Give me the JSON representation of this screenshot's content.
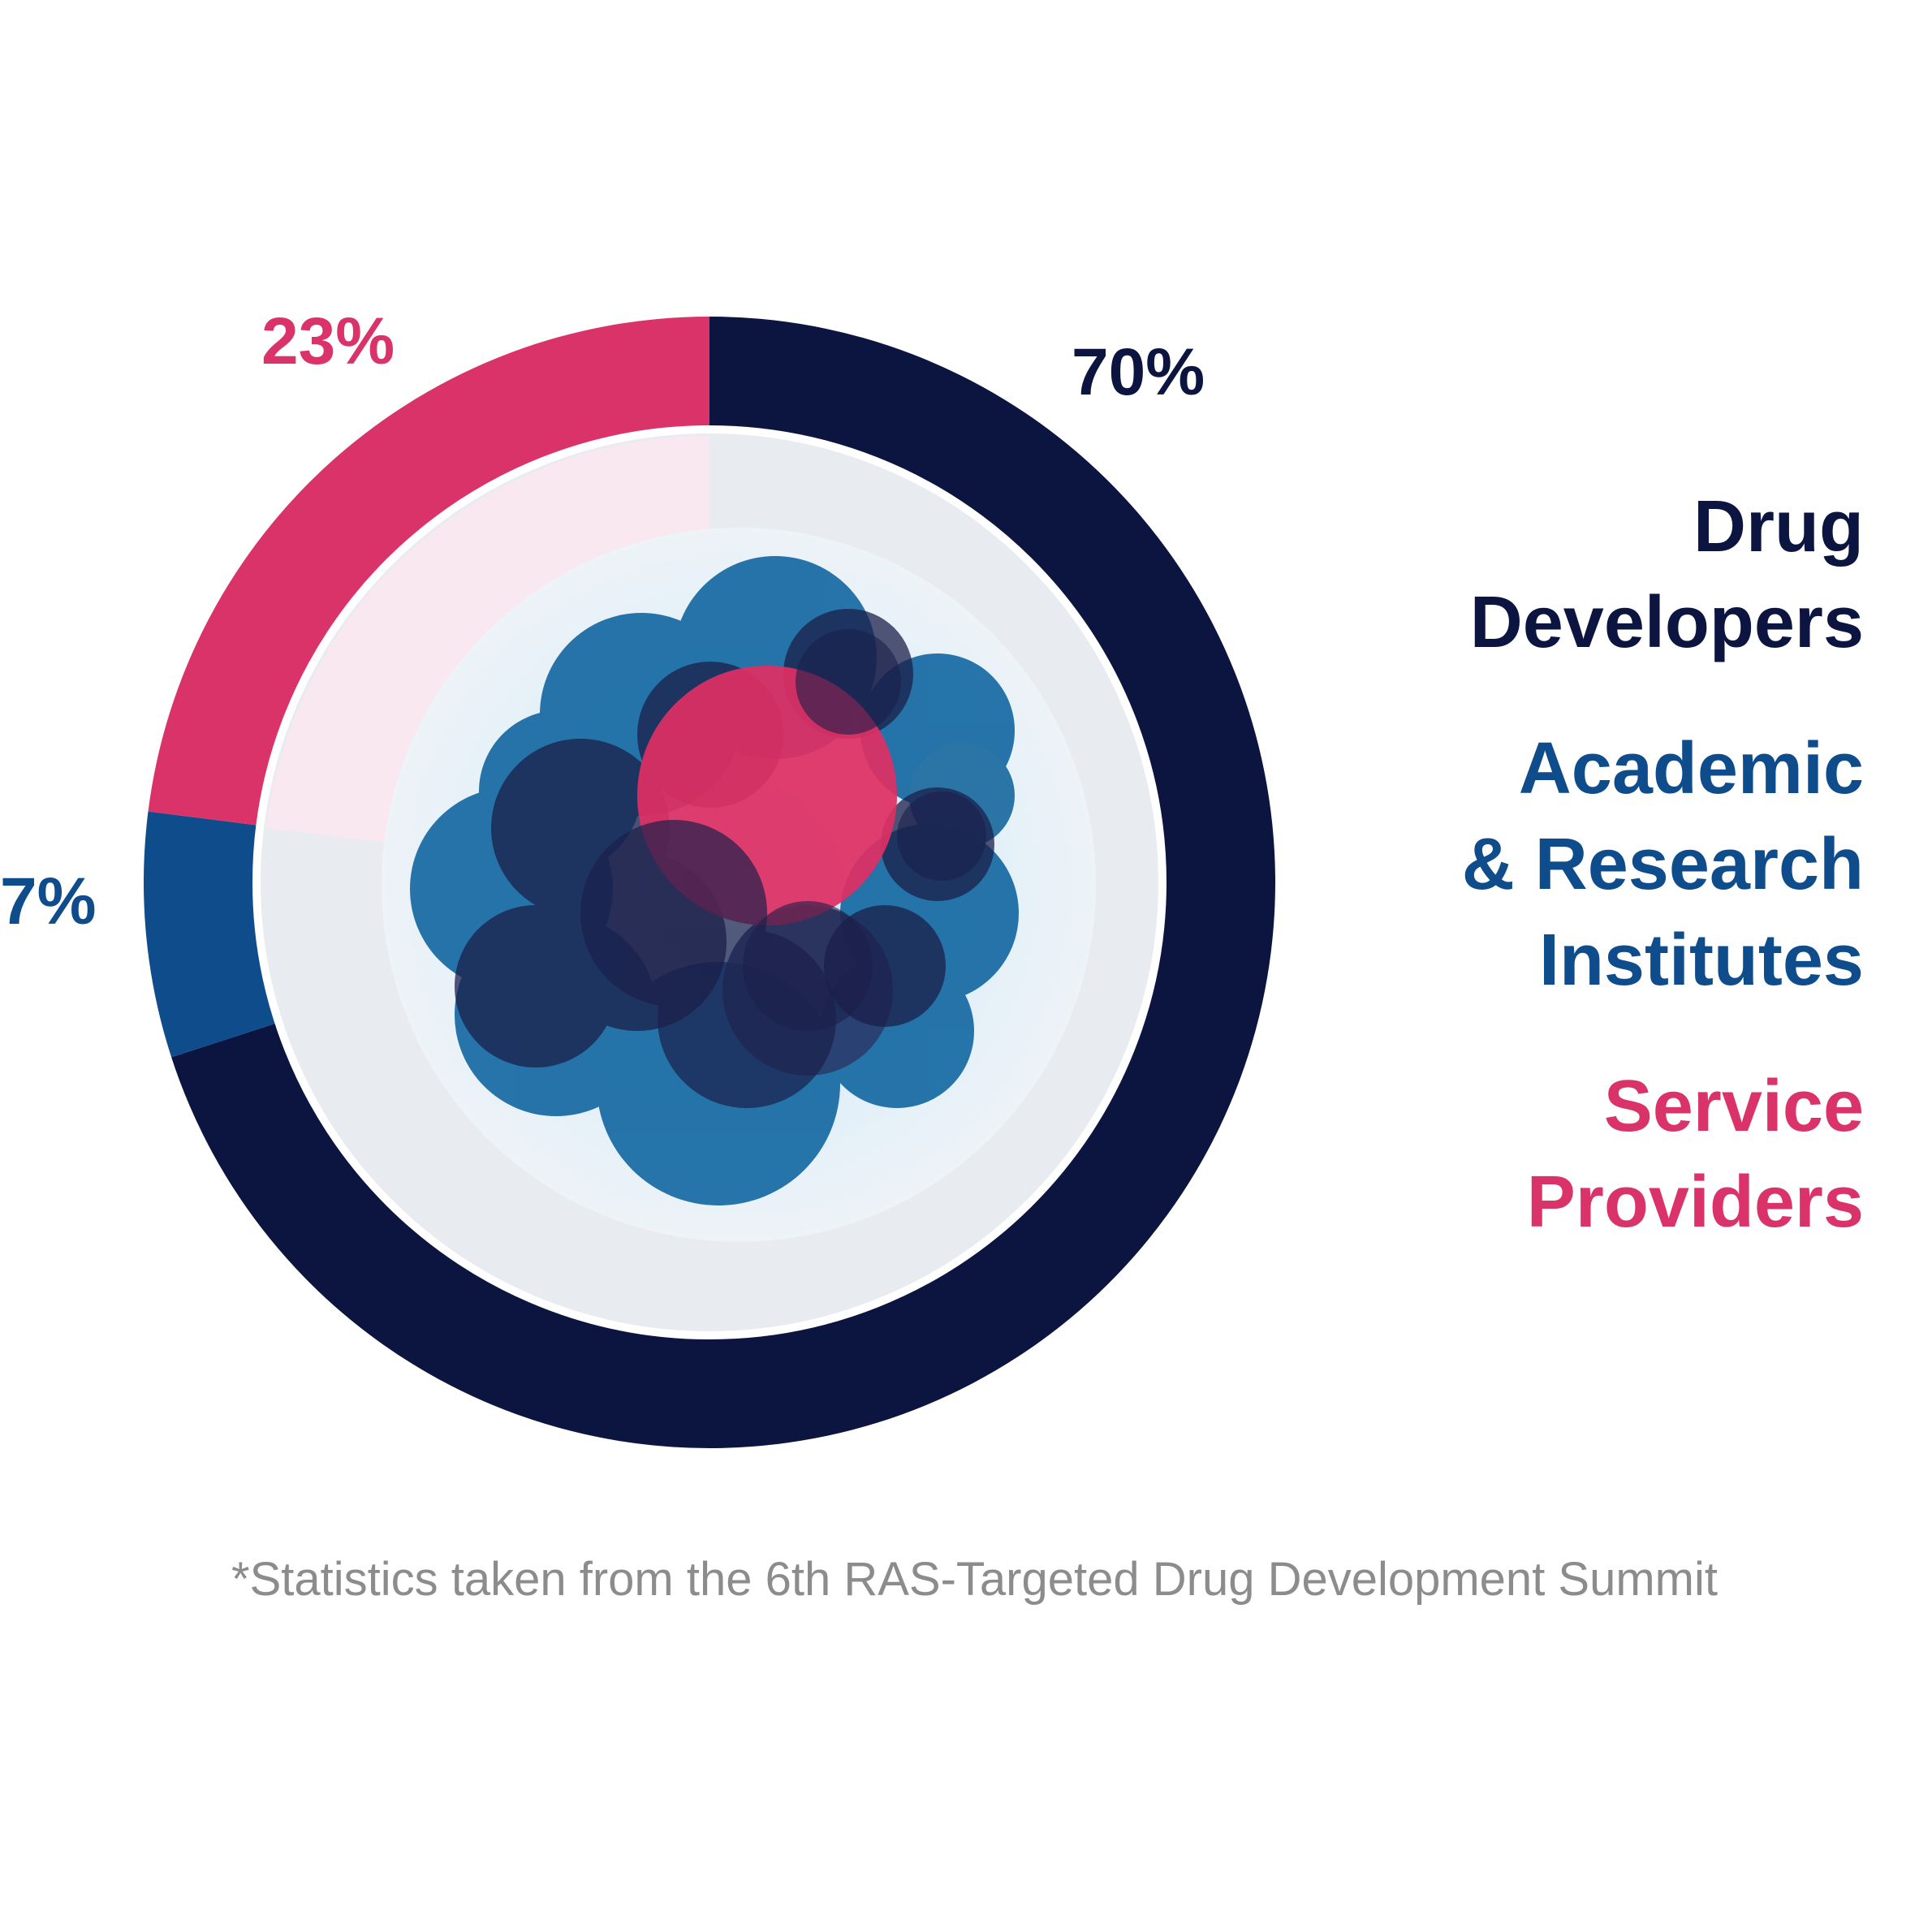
{
  "chart_data": {
    "type": "pie",
    "style": "donut",
    "title": "",
    "slices": [
      {
        "label_lines": [
          "Drug",
          "Developers"
        ],
        "value": 70,
        "value_label": "70%",
        "color": "#0b1540"
      },
      {
        "label_lines": [
          "Academic",
          "& Research",
          "Institutes"
        ],
        "value": 7,
        "value_label": "7%",
        "color": "#0f4c8c"
      },
      {
        "label_lines": [
          "Service",
          "Providers"
        ],
        "value": 23,
        "value_label": "23%",
        "color": "#d9336a"
      }
    ],
    "legend_position": "right",
    "start_angle_deg": 0,
    "direction": "clockwise"
  },
  "footnote": "*Statistics taken from the 6th RAS-Targeted Drug Development Summit",
  "colors": {
    "center_blue": "#1569a3",
    "center_dark": "#1b1f4a",
    "center_pink": "#de2f63",
    "inner_disc": "#e6ecf2",
    "inner_glow": "#d6eaf7"
  },
  "center_illustration": "cell-cluster-icon"
}
